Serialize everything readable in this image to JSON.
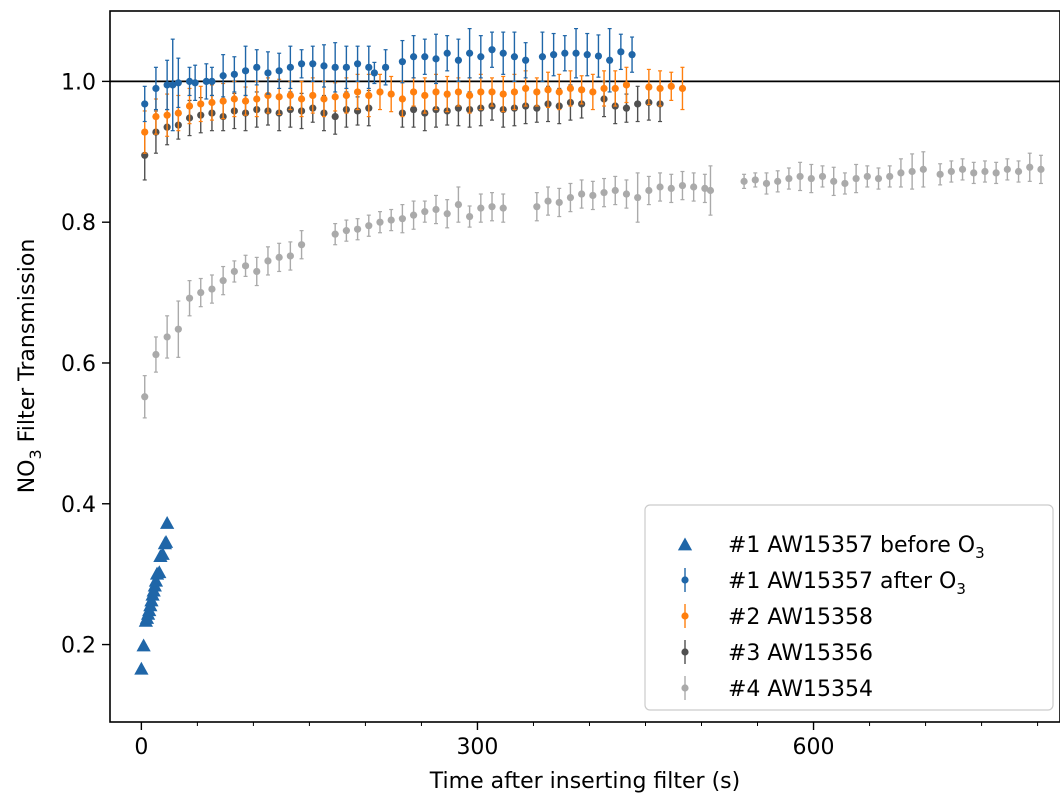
{
  "chart_data": {
    "type": "scatter",
    "title": "",
    "xlabel": "Time after inserting filter (s)",
    "ylabel": {
      "pre": "NO",
      "sub": "3",
      "post": " Filter Transmission"
    },
    "xlim": [
      -28,
      820
    ],
    "ylim": [
      0.09,
      1.1
    ],
    "xticks": [
      0,
      300,
      600
    ],
    "xticks_minor_step": 50,
    "yticks": [
      0.2,
      0.4,
      0.6,
      0.8,
      1.0
    ],
    "yticklabels": [
      "0.2",
      "0.4",
      "0.6",
      "0.8",
      "1.0"
    ],
    "reference_line": 1.0,
    "grid": false,
    "legend_position": "lower right",
    "series": [
      {
        "name": "#1 AW15357 before O",
        "name_sub": "3",
        "color": "#1f66a8",
        "marker": "triangle",
        "points": [
          [
            0,
            0.165
          ],
          [
            2,
            0.198
          ],
          [
            4,
            0.233
          ],
          [
            5,
            0.237
          ],
          [
            6,
            0.243
          ],
          [
            7,
            0.248
          ],
          [
            8,
            0.255
          ],
          [
            9,
            0.262
          ],
          [
            10,
            0.27
          ],
          [
            11,
            0.276
          ],
          [
            12,
            0.283
          ],
          [
            13,
            0.29
          ],
          [
            14,
            0.3
          ],
          [
            16,
            0.302
          ],
          [
            17,
            0.325
          ],
          [
            19,
            0.328
          ],
          [
            21,
            0.343
          ],
          [
            22,
            0.345
          ],
          [
            23,
            0.372
          ]
        ]
      },
      {
        "name": "#1 AW15357 after O",
        "name_sub": "3",
        "color": "#1f66a8",
        "marker": "dot-errorbar",
        "points": [
          [
            3,
            0.968,
            0.025
          ],
          [
            13,
            0.99,
            0.03
          ],
          [
            23,
            0.995,
            0.035
          ],
          [
            28,
            0.995,
            0.065
          ],
          [
            33,
            0.998,
            0.035
          ],
          [
            43,
            1.0,
            0.02
          ],
          [
            48,
            0.998,
            0.025
          ],
          [
            58,
            1.0,
            0.025
          ],
          [
            63,
            1.0,
            0.02
          ],
          [
            73,
            1.008,
            0.03
          ],
          [
            83,
            1.01,
            0.025
          ],
          [
            93,
            1.015,
            0.035
          ],
          [
            103,
            1.02,
            0.025
          ],
          [
            113,
            1.012,
            0.03
          ],
          [
            123,
            1.015,
            0.025
          ],
          [
            133,
            1.02,
            0.03
          ],
          [
            143,
            1.025,
            0.02
          ],
          [
            153,
            1.025,
            0.025
          ],
          [
            163,
            1.022,
            0.03
          ],
          [
            173,
            1.02,
            0.035
          ],
          [
            183,
            1.02,
            0.03
          ],
          [
            193,
            1.025,
            0.025
          ],
          [
            203,
            1.02,
            0.03
          ],
          [
            208,
            1.012,
            0.015
          ],
          [
            218,
            1.02,
            0.025
          ],
          [
            233,
            1.028,
            0.03
          ],
          [
            243,
            1.035,
            0.03
          ],
          [
            253,
            1.035,
            0.025
          ],
          [
            263,
            1.032,
            0.035
          ],
          [
            273,
            1.04,
            0.025
          ],
          [
            283,
            1.03,
            0.03
          ],
          [
            293,
            1.04,
            0.035
          ],
          [
            303,
            1.035,
            0.03
          ],
          [
            313,
            1.045,
            0.025
          ],
          [
            323,
            1.04,
            0.03
          ],
          [
            333,
            1.035,
            0.035
          ],
          [
            343,
            1.03,
            0.025
          ],
          [
            358,
            1.035,
            0.035
          ],
          [
            368,
            1.038,
            0.03
          ],
          [
            378,
            1.04,
            0.025
          ],
          [
            388,
            1.04,
            0.035
          ],
          [
            398,
            1.038,
            0.03
          ],
          [
            408,
            1.036,
            0.03
          ],
          [
            418,
            1.03,
            0.045
          ],
          [
            428,
            1.042,
            0.025
          ],
          [
            438,
            1.038,
            0.025
          ]
        ]
      },
      {
        "name": "#2 AW15358",
        "name_sub": "",
        "color": "#ff7f0e",
        "marker": "dot-errorbar",
        "points": [
          [
            3,
            0.928,
            0.03
          ],
          [
            13,
            0.95,
            0.025
          ],
          [
            23,
            0.952,
            0.03
          ],
          [
            33,
            0.955,
            0.025
          ],
          [
            43,
            0.965,
            0.025
          ],
          [
            53,
            0.968,
            0.025
          ],
          [
            63,
            0.97,
            0.025
          ],
          [
            73,
            0.972,
            0.025
          ],
          [
            83,
            0.975,
            0.025
          ],
          [
            93,
            0.972,
            0.02
          ],
          [
            103,
            0.975,
            0.025
          ],
          [
            113,
            0.98,
            0.025
          ],
          [
            123,
            0.978,
            0.025
          ],
          [
            133,
            0.98,
            0.02
          ],
          [
            143,
            0.975,
            0.025
          ],
          [
            153,
            0.98,
            0.025
          ],
          [
            163,
            0.975,
            0.025
          ],
          [
            173,
            0.978,
            0.02
          ],
          [
            183,
            0.98,
            0.025
          ],
          [
            193,
            0.985,
            0.025
          ],
          [
            203,
            0.98,
            0.03
          ],
          [
            213,
            0.985,
            0.025
          ],
          [
            223,
            0.982,
            0.025
          ],
          [
            233,
            0.975,
            0.025
          ],
          [
            243,
            0.985,
            0.02
          ],
          [
            253,
            0.98,
            0.025
          ],
          [
            263,
            0.985,
            0.025
          ],
          [
            273,
            0.982,
            0.025
          ],
          [
            283,
            0.985,
            0.02
          ],
          [
            293,
            0.98,
            0.025
          ],
          [
            303,
            0.985,
            0.025
          ],
          [
            313,
            0.985,
            0.02
          ],
          [
            323,
            0.982,
            0.025
          ],
          [
            333,
            0.985,
            0.025
          ],
          [
            343,
            0.99,
            0.025
          ],
          [
            353,
            0.985,
            0.02
          ],
          [
            363,
            0.988,
            0.025
          ],
          [
            373,
            0.985,
            0.025
          ],
          [
            383,
            0.99,
            0.025
          ],
          [
            393,
            0.988,
            0.02
          ],
          [
            403,
            0.985,
            0.025
          ],
          [
            413,
            0.99,
            0.025
          ],
          [
            423,
            0.99,
            0.025
          ],
          [
            433,
            0.995,
            0.025
          ],
          [
            453,
            0.992,
            0.025
          ],
          [
            463,
            0.99,
            0.025
          ],
          [
            473,
            0.993,
            0.02
          ],
          [
            483,
            0.99,
            0.03
          ]
        ]
      },
      {
        "name": "#3 AW15356",
        "name_sub": "",
        "color": "#505050",
        "marker": "dot-errorbar",
        "points": [
          [
            3,
            0.895,
            0.035
          ],
          [
            13,
            0.928,
            0.03
          ],
          [
            23,
            0.935,
            0.025
          ],
          [
            33,
            0.938,
            0.02
          ],
          [
            43,
            0.948,
            0.025
          ],
          [
            53,
            0.952,
            0.025
          ],
          [
            63,
            0.955,
            0.025
          ],
          [
            73,
            0.95,
            0.02
          ],
          [
            83,
            0.958,
            0.025
          ],
          [
            93,
            0.955,
            0.025
          ],
          [
            103,
            0.96,
            0.025
          ],
          [
            113,
            0.958,
            0.02
          ],
          [
            123,
            0.955,
            0.025
          ],
          [
            133,
            0.96,
            0.025
          ],
          [
            143,
            0.958,
            0.025
          ],
          [
            153,
            0.962,
            0.02
          ],
          [
            163,
            0.955,
            0.025
          ],
          [
            173,
            0.95,
            0.025
          ],
          [
            183,
            0.96,
            0.025
          ],
          [
            193,
            0.958,
            0.02
          ],
          [
            203,
            0.962,
            0.025
          ],
          [
            233,
            0.955,
            0.02
          ],
          [
            243,
            0.96,
            0.025
          ],
          [
            253,
            0.955,
            0.025
          ],
          [
            263,
            0.96,
            0.025
          ],
          [
            273,
            0.958,
            0.02
          ],
          [
            283,
            0.962,
            0.025
          ],
          [
            293,
            0.96,
            0.025
          ],
          [
            303,
            0.962,
            0.025
          ],
          [
            313,
            0.965,
            0.02
          ],
          [
            323,
            0.96,
            0.025
          ],
          [
            333,
            0.962,
            0.025
          ],
          [
            343,
            0.965,
            0.025
          ],
          [
            353,
            0.962,
            0.02
          ],
          [
            363,
            0.968,
            0.025
          ],
          [
            373,
            0.965,
            0.025
          ],
          [
            383,
            0.97,
            0.025
          ],
          [
            393,
            0.968,
            0.02
          ],
          [
            413,
            0.975,
            0.025
          ],
          [
            423,
            0.965,
            0.025
          ],
          [
            433,
            0.962,
            0.02
          ],
          [
            443,
            0.968,
            0.025
          ],
          [
            453,
            0.97,
            0.025
          ],
          [
            463,
            0.968,
            0.025
          ]
        ]
      },
      {
        "name": "#4 AW15354",
        "name_sub": "",
        "color": "#aaaaaa",
        "marker": "dot-errorbar",
        "points": [
          [
            3,
            0.552,
            0.03
          ],
          [
            13,
            0.612,
            0.025
          ],
          [
            23,
            0.637,
            0.03
          ],
          [
            33,
            0.648,
            0.04
          ],
          [
            43,
            0.692,
            0.025
          ],
          [
            53,
            0.7,
            0.02
          ],
          [
            63,
            0.705,
            0.02
          ],
          [
            73,
            0.717,
            0.02
          ],
          [
            83,
            0.73,
            0.015
          ],
          [
            93,
            0.738,
            0.015
          ],
          [
            103,
            0.73,
            0.02
          ],
          [
            113,
            0.745,
            0.02
          ],
          [
            123,
            0.75,
            0.02
          ],
          [
            133,
            0.752,
            0.02
          ],
          [
            143,
            0.768,
            0.02
          ],
          [
            173,
            0.783,
            0.015
          ],
          [
            183,
            0.788,
            0.015
          ],
          [
            193,
            0.79,
            0.015
          ],
          [
            203,
            0.795,
            0.015
          ],
          [
            213,
            0.8,
            0.015
          ],
          [
            223,
            0.803,
            0.015
          ],
          [
            233,
            0.805,
            0.02
          ],
          [
            243,
            0.81,
            0.02
          ],
          [
            253,
            0.815,
            0.015
          ],
          [
            263,
            0.818,
            0.02
          ],
          [
            273,
            0.812,
            0.02
          ],
          [
            283,
            0.825,
            0.025
          ],
          [
            293,
            0.808,
            0.015
          ],
          [
            303,
            0.82,
            0.02
          ],
          [
            313,
            0.822,
            0.02
          ],
          [
            323,
            0.82,
            0.02
          ],
          [
            353,
            0.822,
            0.02
          ],
          [
            363,
            0.83,
            0.02
          ],
          [
            373,
            0.828,
            0.02
          ],
          [
            383,
            0.835,
            0.02
          ],
          [
            393,
            0.84,
            0.02
          ],
          [
            403,
            0.838,
            0.02
          ],
          [
            413,
            0.842,
            0.02
          ],
          [
            423,
            0.845,
            0.02
          ],
          [
            433,
            0.84,
            0.02
          ],
          [
            443,
            0.835,
            0.035
          ],
          [
            453,
            0.845,
            0.02
          ],
          [
            463,
            0.85,
            0.02
          ],
          [
            473,
            0.848,
            0.02
          ],
          [
            483,
            0.852,
            0.02
          ],
          [
            493,
            0.85,
            0.02
          ],
          [
            503,
            0.848,
            0.02
          ],
          [
            508,
            0.845,
            0.035
          ],
          [
            538,
            0.858,
            0.01
          ],
          [
            548,
            0.86,
            0.01
          ],
          [
            558,
            0.855,
            0.015
          ],
          [
            568,
            0.858,
            0.015
          ],
          [
            578,
            0.862,
            0.015
          ],
          [
            588,
            0.865,
            0.02
          ],
          [
            598,
            0.862,
            0.02
          ],
          [
            608,
            0.865,
            0.015
          ],
          [
            618,
            0.858,
            0.02
          ],
          [
            628,
            0.855,
            0.015
          ],
          [
            638,
            0.862,
            0.02
          ],
          [
            648,
            0.865,
            0.015
          ],
          [
            658,
            0.862,
            0.015
          ],
          [
            668,
            0.865,
            0.015
          ],
          [
            678,
            0.87,
            0.02
          ],
          [
            688,
            0.872,
            0.025
          ],
          [
            698,
            0.875,
            0.025
          ],
          [
            713,
            0.868,
            0.015
          ],
          [
            723,
            0.872,
            0.015
          ],
          [
            733,
            0.875,
            0.015
          ],
          [
            743,
            0.87,
            0.015
          ],
          [
            753,
            0.872,
            0.015
          ],
          [
            763,
            0.87,
            0.015
          ],
          [
            773,
            0.875,
            0.015
          ],
          [
            783,
            0.872,
            0.015
          ],
          [
            793,
            0.878,
            0.02
          ],
          [
            803,
            0.875,
            0.02
          ]
        ]
      }
    ]
  }
}
